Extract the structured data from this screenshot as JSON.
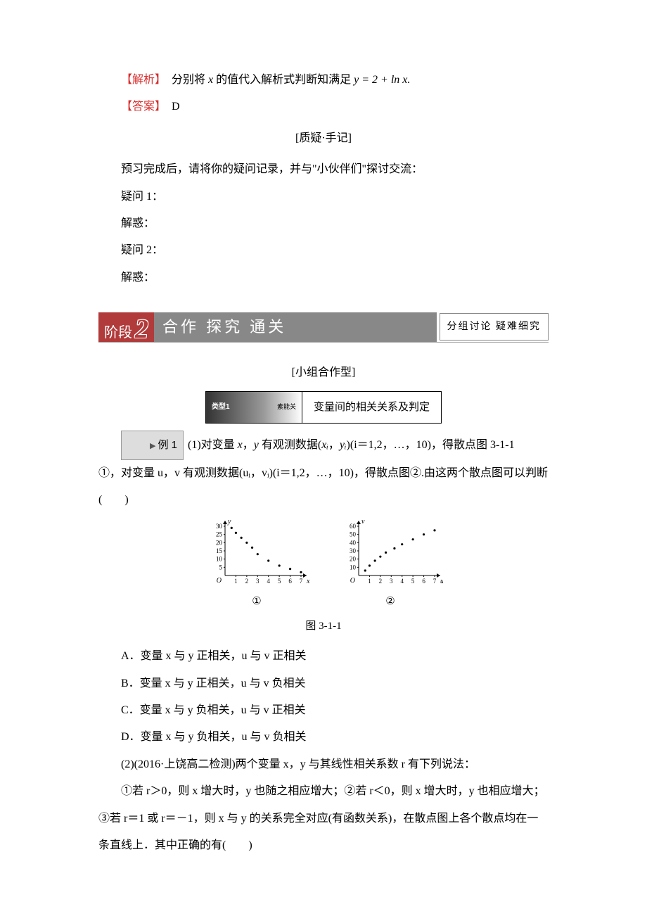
{
  "analysis_label": "【解析】",
  "analysis_text_pre": "　分别将 ",
  "analysis_text_var": "x",
  "analysis_text_mid": " 的值代入解析式判断知满足 ",
  "analysis_text_eq": "y = 2 + ln x.",
  "answer_label": "【答案】",
  "answer_text": "　D",
  "qna_heading": "[质疑·手记]",
  "qna_intro": "预习完成后，请将你的疑问记录，并与\"小伙伴们\"探讨交流：",
  "q1": "疑问 1：",
  "a1": "解惑：",
  "q2": "疑问 2：",
  "a2": "解惑：",
  "stage_label": "阶段",
  "stage_num": "2",
  "stage_title": "合作 探究 通关",
  "stage_note": "分组讨论 疑难细究",
  "group_heading": "[小组合作型]",
  "type_label": "类型1",
  "type_sub": "素能关",
  "type_title": "变量间的相关关系及判定",
  "example_label": "例 1",
  "ex1_text_1": "(1)对变量 ",
  "ex1_var_x": "x",
  "ex1_text_2": "，",
  "ex1_var_y": "y",
  "ex1_text_3": " 有观测数据(",
  "ex1_xi": "xᵢ",
  "ex1_text_4": "，",
  "ex1_yi": "yᵢ",
  "ex1_text_5": ")(i＝1,2，…，10)，得散点图 3-1-1",
  "ex1_line2": "①，对变量 u，v 有观测数据(uᵢ，vᵢ)(i＝1,2，…，10)，得散点图②.由这两个散点图可以判断(　　)",
  "plot1": {
    "type": "scatter",
    "x_label": "x",
    "y_label": "y",
    "y_ticks": [
      5,
      10,
      15,
      20,
      25,
      30
    ],
    "x_ticks": [
      1,
      2,
      3,
      4,
      5,
      6,
      7
    ],
    "points": [
      [
        0.6,
        29
      ],
      [
        1,
        26
      ],
      [
        1.5,
        23
      ],
      [
        2,
        20
      ],
      [
        2.5,
        17
      ],
      [
        3,
        13
      ],
      [
        4,
        9
      ],
      [
        5,
        6
      ],
      [
        6,
        4
      ],
      [
        7,
        2
      ]
    ],
    "marker_color": "#000000",
    "axis_color": "#000000",
    "bg": "#ffffff",
    "label": "①"
  },
  "plot2": {
    "type": "scatter",
    "x_label": "u",
    "y_label": "v",
    "y_ticks": [
      10,
      20,
      30,
      40,
      50,
      60
    ],
    "x_ticks": [
      1,
      2,
      3,
      4,
      5,
      6,
      7
    ],
    "points": [
      [
        0.6,
        6
      ],
      [
        1,
        12
      ],
      [
        1.5,
        18
      ],
      [
        2,
        23
      ],
      [
        2.5,
        28
      ],
      [
        3.3,
        33
      ],
      [
        4,
        38
      ],
      [
        5,
        44
      ],
      [
        6,
        50
      ],
      [
        7,
        55
      ]
    ],
    "marker_color": "#000000",
    "axis_color": "#000000",
    "bg": "#ffffff",
    "label": "②"
  },
  "fig_caption": "图 3-1-1",
  "optA": "A．变量 x 与 y 正相关，u 与 v 正相关",
  "optB": "B．变量 x 与 y 正相关，u 与 v 负相关",
  "optC": "C．变量 x 与 y 负相关，u 与 v 正相关",
  "optD": "D．变量 x 与 y 负相关，u 与 v 负相关",
  "ex2_text": "(2)(2016·上饶高二检测)两个变量 x，y 与其线性相关系数 r 有下列说法：",
  "ex2_line2": "①若 r＞0，则 x 增大时，y 也随之相应增大；②若 r＜0，则 x 增大时，y 也相应增大；③若 r＝1 或 r＝－1，则 x 与 y 的关系完全对应(有函数关系)，在散点图上各个散点均在一条直线上．其中正确的有(　　)"
}
